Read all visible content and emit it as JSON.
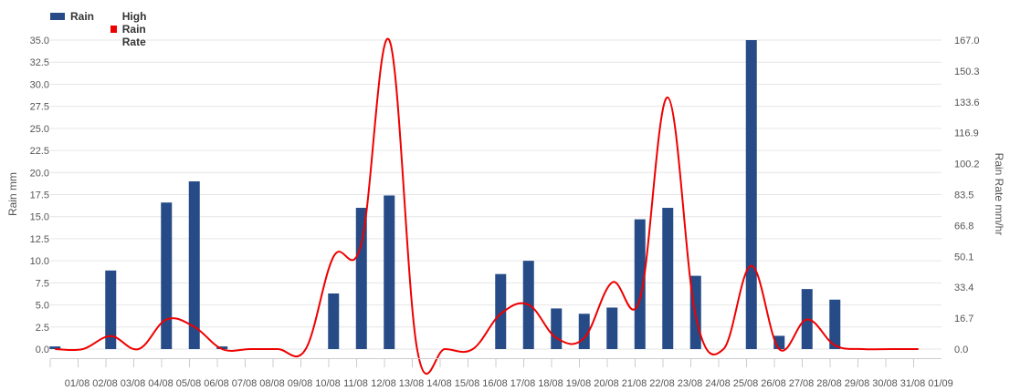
{
  "legend": {
    "rain": "Rain",
    "high_rain_rate": "High Rain Rate"
  },
  "colors": {
    "rain_bar": "#264b87",
    "rain_rate_line": "#ee0000",
    "grid": "#e6e6e6",
    "axis_line": "#cccccc",
    "tick_text": "#555555"
  },
  "chart_data": {
    "type": "bar",
    "categories": [
      "01/08",
      "02/08",
      "03/08",
      "04/08",
      "05/08",
      "06/08",
      "07/08",
      "08/08",
      "09/08",
      "10/08",
      "11/08",
      "12/08",
      "13/08",
      "14/08",
      "15/08",
      "16/08",
      "17/08",
      "18/08",
      "19/08",
      "20/08",
      "21/08",
      "22/08",
      "23/08",
      "24/08",
      "25/08",
      "26/08",
      "27/08",
      "28/08",
      "29/08",
      "30/08",
      "31/08",
      "01/09"
    ],
    "series": [
      {
        "name": "Rain",
        "type": "bar",
        "axis": "left",
        "values": [
          0.3,
          0,
          8.9,
          0,
          16.6,
          19.0,
          0.3,
          0,
          0,
          0,
          6.3,
          16.0,
          17.4,
          0,
          0,
          0,
          8.5,
          10.0,
          4.6,
          4.0,
          4.7,
          14.7,
          16.0,
          8.3,
          0,
          35.0,
          1.5,
          6.8,
          5.6,
          0,
          0,
          0
        ]
      },
      {
        "name": "High Rain Rate",
        "type": "spline",
        "axis": "right",
        "values": [
          0,
          0,
          7.0,
          0,
          16.0,
          12.0,
          0,
          0,
          0,
          0,
          50.0,
          57.0,
          167.0,
          0,
          0,
          0,
          19.0,
          24.0,
          6.0,
          6.0,
          36.0,
          27.0,
          136.0,
          18.0,
          0,
          45.0,
          0,
          16.0,
          2.0,
          0,
          0,
          0
        ]
      }
    ],
    "y_left": {
      "label": "Rain mm",
      "ylim": [
        0,
        35
      ],
      "ticks": [
        "0.0",
        "2.5",
        "5.0",
        "7.5",
        "10.0",
        "12.5",
        "15.0",
        "17.5",
        "20.0",
        "22.5",
        "25.0",
        "27.5",
        "30.0",
        "32.5",
        "35.0"
      ]
    },
    "y_right": {
      "label": "Rain Rate mm/hr",
      "ylim": [
        0,
        167
      ],
      "ticks": [
        "0.0",
        "16.7",
        "33.4",
        "50.1",
        "66.8",
        "83.5",
        "100.2",
        "116.9",
        "133.6",
        "150.3",
        "167.0"
      ]
    },
    "grid": true,
    "legend_position": "top-left"
  }
}
